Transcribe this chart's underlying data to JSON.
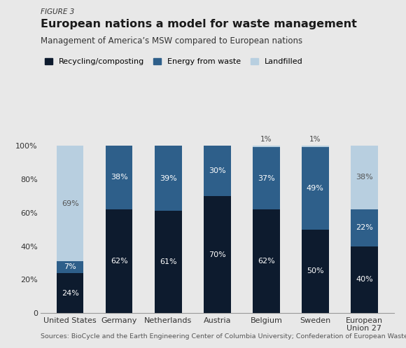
{
  "figure_label": "FIGURE 3",
  "title": "European nations a model for waste management",
  "subtitle": "Management of America’s MSW compared to European nations",
  "source": "Sources: BioCycle and the Earth Engineering Center of Columbia University; Confederation of European Waste-to-Energy Plants.",
  "categories": [
    "United States",
    "Germany",
    "Netherlands",
    "Austria",
    "Belgium",
    "Sweden",
    "European\nUnion 27"
  ],
  "recycling": [
    24,
    62,
    61,
    70,
    62,
    50,
    40
  ],
  "energy": [
    7,
    38,
    39,
    30,
    37,
    49,
    22
  ],
  "landfill": [
    69,
    0,
    0,
    0,
    1,
    1,
    38
  ],
  "recycling_labels": [
    "24%",
    "62%",
    "61%",
    "70%",
    "62%",
    "50%",
    "40%"
  ],
  "energy_labels": [
    "7%",
    "38%",
    "39%",
    "30%",
    "37%",
    "49%",
    "22%"
  ],
  "landfill_labels": [
    "69%",
    "",
    "",
    "",
    "1%",
    "1%",
    "38%"
  ],
  "landfill_label_above": [
    false,
    false,
    false,
    false,
    true,
    true,
    false
  ],
  "color_recycling": "#0d1b2e",
  "color_energy": "#2e5f8a",
  "color_landfill": "#b8cfe0",
  "background_color": "#e8e8e8",
  "legend_labels": [
    "Recycling/composting",
    "Energy from waste",
    "Landfilled"
  ],
  "bar_width": 0.55,
  "ylim": [
    0,
    108
  ],
  "yticks": [
    0,
    20,
    40,
    60,
    80,
    100
  ],
  "yticklabels": [
    "0",
    "20%",
    "40%",
    "60%",
    "80%",
    "100%"
  ]
}
